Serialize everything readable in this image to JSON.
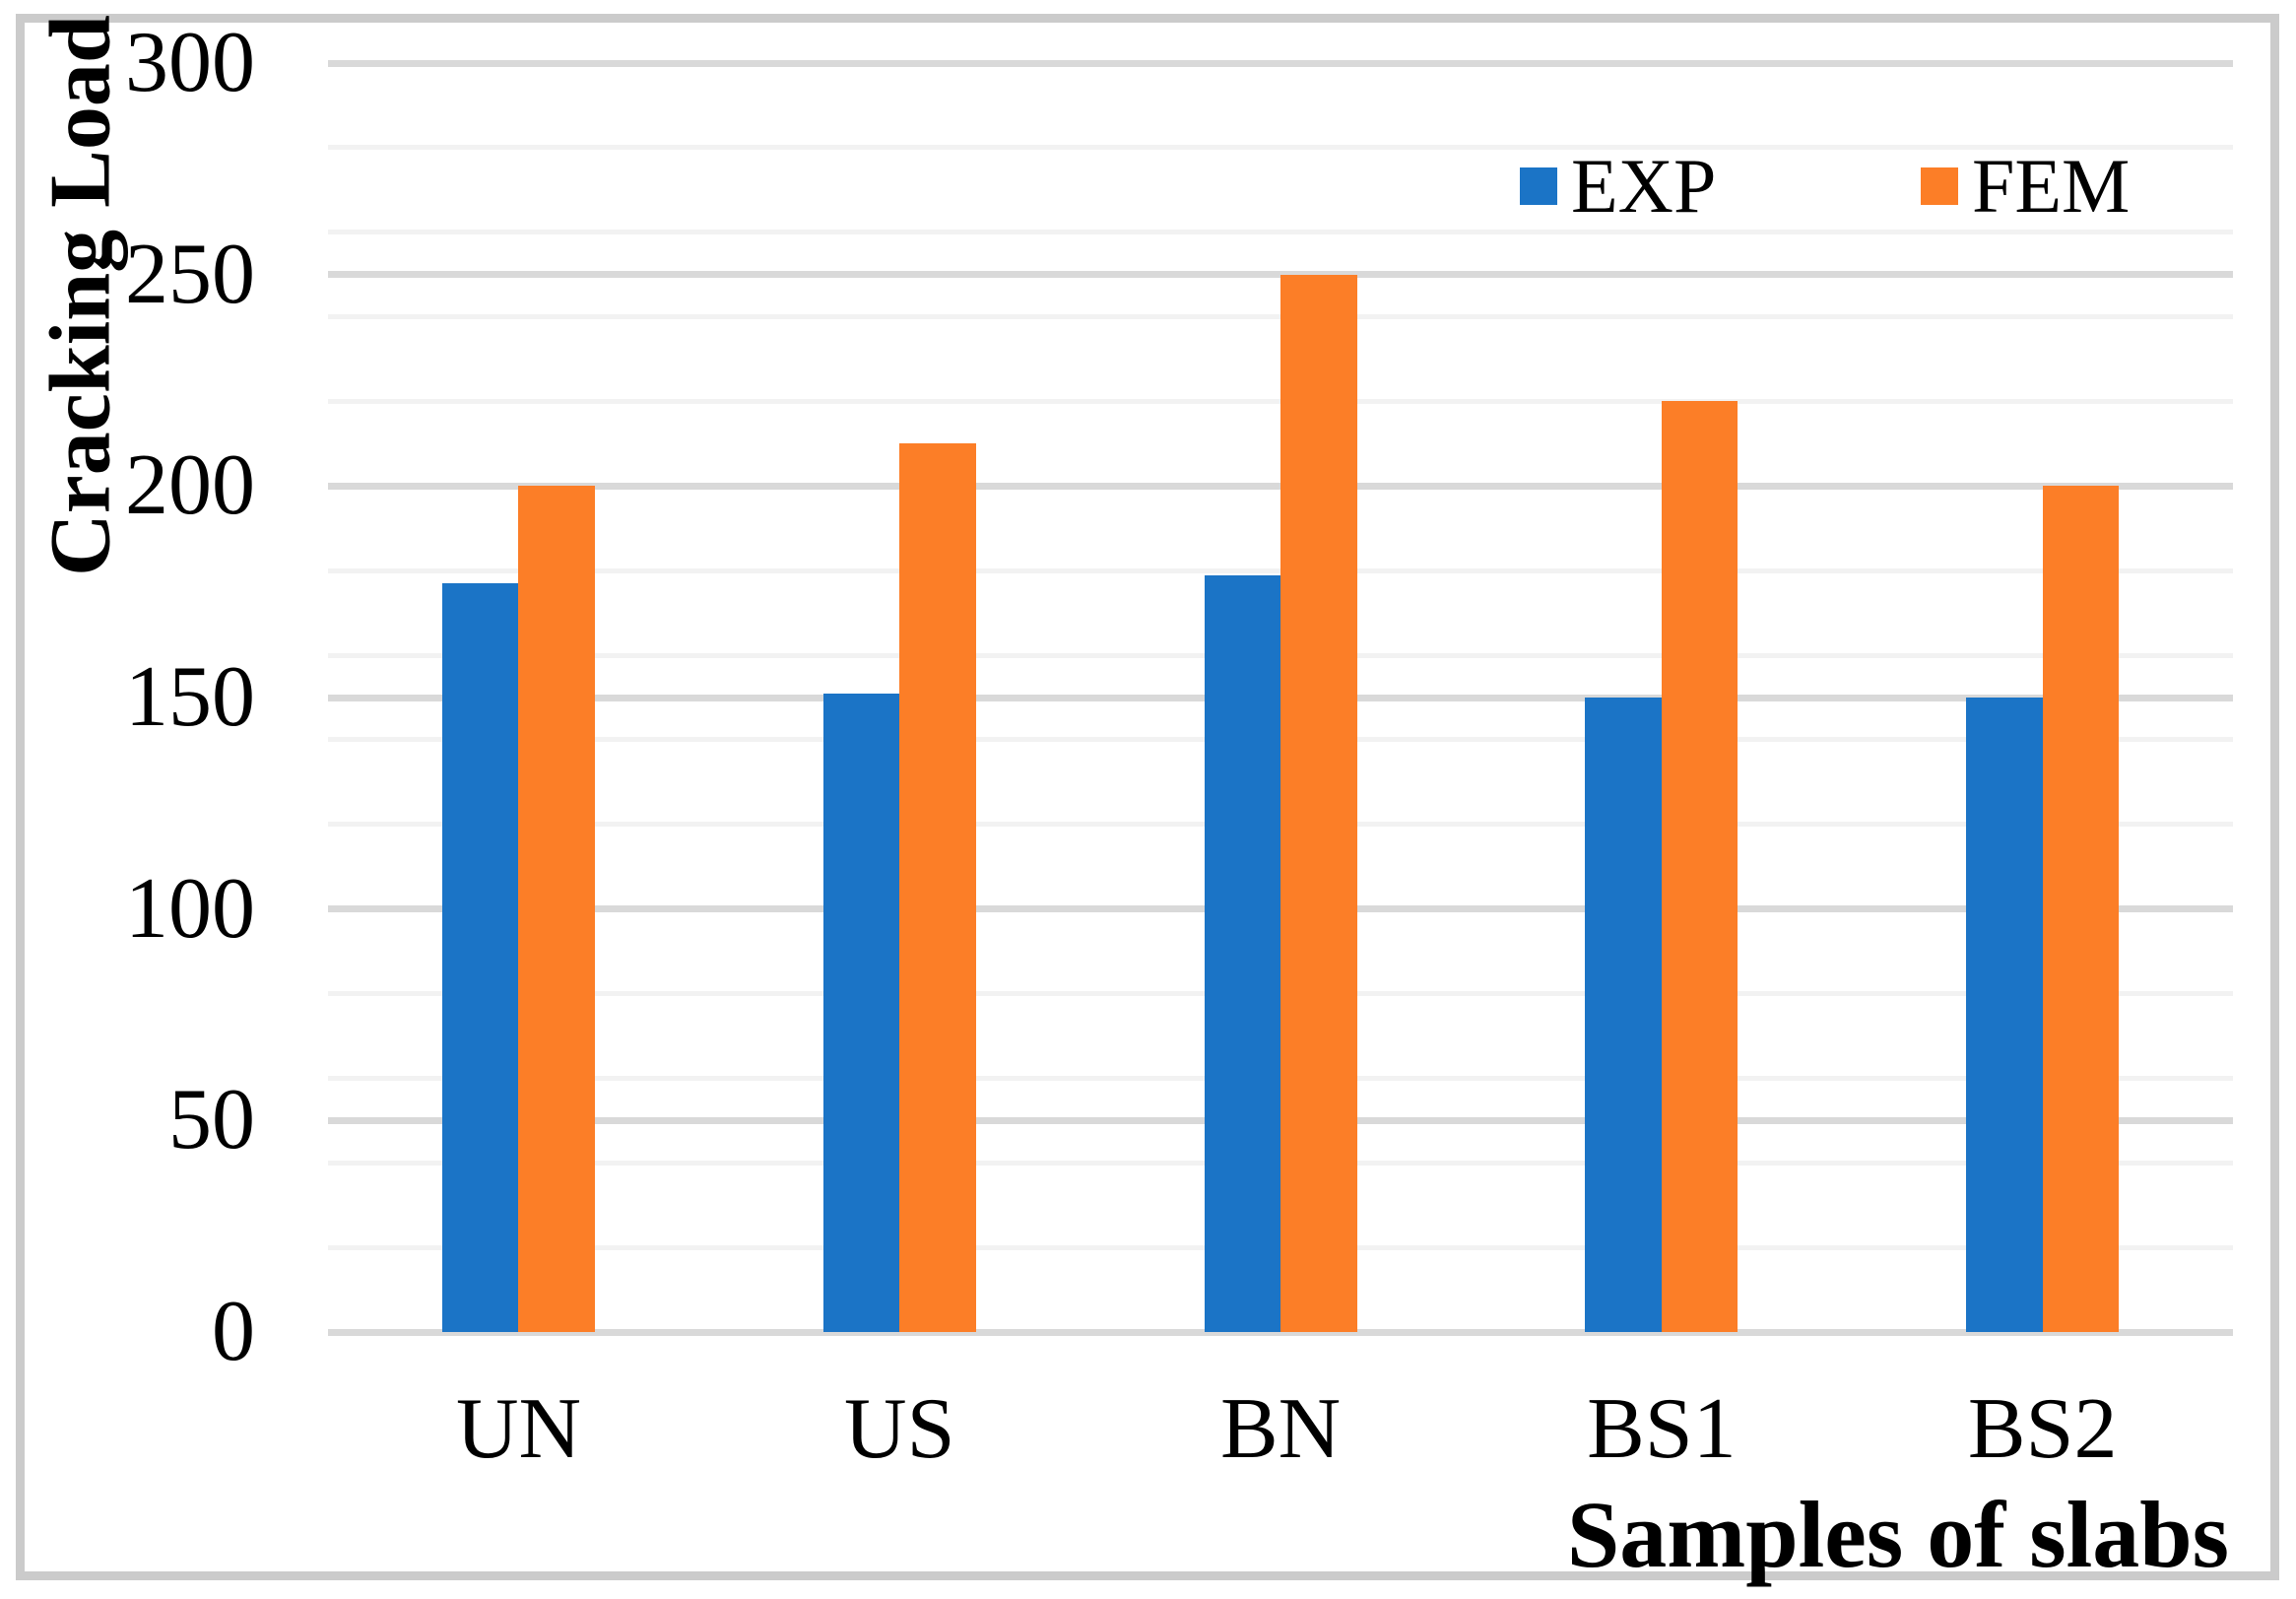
{
  "figure": {
    "border_color": "#cbcbcb",
    "background": "#ffffff"
  },
  "chart_data": {
    "type": "bar",
    "title": "",
    "categories": [
      "UN",
      "US",
      "BN",
      "BS1",
      "BS2"
    ],
    "series": [
      {
        "name": "EXP",
        "color": "#1b74c6",
        "values": [
          177,
          151,
          179,
          150,
          150
        ]
      },
      {
        "name": "FEM",
        "color": "#fc7e27",
        "values": [
          200,
          210,
          250,
          220,
          200
        ]
      }
    ],
    "xlabel": "Samples of slabs",
    "ylabel": "Cracking Load",
    "ylim": [
      0,
      300
    ],
    "ytick_interval": 50,
    "minor_grid_interval": 20,
    "yticks": [
      "0",
      "50",
      "100",
      "150",
      "200",
      "250",
      "300"
    ],
    "grid": "horizontal",
    "legend": {
      "position": "top-right",
      "entries": [
        "EXP",
        "FEM"
      ]
    }
  }
}
